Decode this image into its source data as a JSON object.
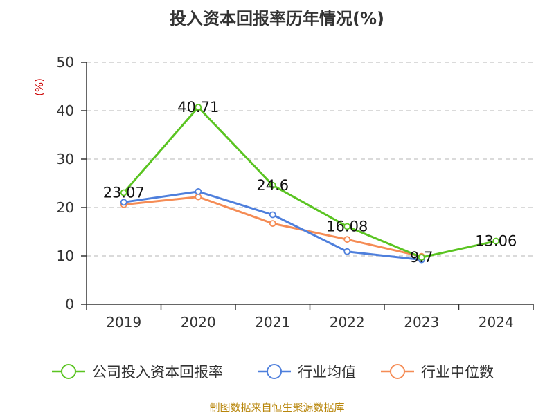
{
  "chart_data": {
    "type": "line",
    "title": "投入资本回报率历年情况(%)",
    "ylabel": "(%)",
    "xlabel": "",
    "categories": [
      "2019",
      "2020",
      "2021",
      "2022",
      "2023",
      "2024"
    ],
    "ylim": [
      0,
      50
    ],
    "yticks": [
      0,
      10,
      20,
      30,
      40,
      50
    ],
    "grid": true,
    "legend_position": "bottom",
    "series": [
      {
        "name": "公司投入资本回报率",
        "color": "#5ac421",
        "values": [
          23.07,
          40.71,
          24.6,
          16.08,
          9.7,
          13.06
        ],
        "labels": [
          "23.07",
          "40.71",
          "24.6",
          "16.08",
          "9.7",
          "13.06"
        ]
      },
      {
        "name": "行业均值",
        "color": "#4e7fdc",
        "values": [
          21.1,
          23.3,
          18.5,
          10.9,
          9.2,
          null
        ]
      },
      {
        "name": "行业中位数",
        "color": "#f58c55",
        "values": [
          20.6,
          22.2,
          16.7,
          13.4,
          9.9,
          null
        ]
      }
    ]
  },
  "source": "制图数据来自恒生聚源数据库"
}
